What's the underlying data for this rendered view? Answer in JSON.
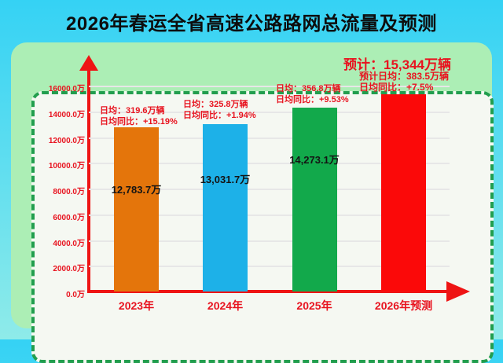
{
  "title": "2026年春运全省高速公路路网总流量及预测",
  "chart_data": {
    "type": "bar",
    "title": "2026年春运全省高速公路路网总流量及预测",
    "categories": [
      "2023年",
      "2024年",
      "2025年",
      "2026年预测"
    ],
    "values": [
      12783.7,
      13031.7,
      14273.1,
      15344
    ],
    "value_labels": [
      "12,783.7万",
      "13,031.7万",
      "14,273.1万",
      ""
    ],
    "bar_colors": [
      "#e4750b",
      "#1db1e8",
      "#12a94b",
      "#fb0909"
    ],
    "ylim": [
      0,
      16000
    ],
    "ytick_step": 2000,
    "ytick_labels": [
      "0.0万",
      "2000.0万",
      "4000.0万",
      "6000.0万",
      "8000.0万",
      "10000.0万",
      "12000.0万",
      "14000.0万",
      "16000.0万"
    ],
    "grid": true,
    "legend": "none",
    "annotations": [
      {
        "lines": [
          "日均：319.6万辆",
          "日均同比：+15.19%"
        ]
      },
      {
        "lines": [
          "日均：325.8万辆",
          "日均同比：+1.94%"
        ]
      },
      {
        "lines": [
          "日均：356.8万辆",
          "日均同比：+9.53%"
        ]
      },
      {
        "headline": "预计：15,344万辆",
        "lines": [
          "预计日均：383.5万辆",
          "日均同比：+7.5%"
        ]
      }
    ]
  },
  "colors": {
    "page_bg_top": "#35d2f4",
    "page_bg_mid": "#5cddf0",
    "page_bg_bottom": "#8febe9",
    "card_bg": "#aceeb5",
    "panel_bg": "#f5f8f2",
    "panel_border": "#229e4e",
    "axis_red": "#ee1414",
    "label_red": "#e8131f",
    "grid_gray": "#e7e7e7",
    "title_color": "#0d0d0d",
    "value_label_color": "#141414"
  }
}
